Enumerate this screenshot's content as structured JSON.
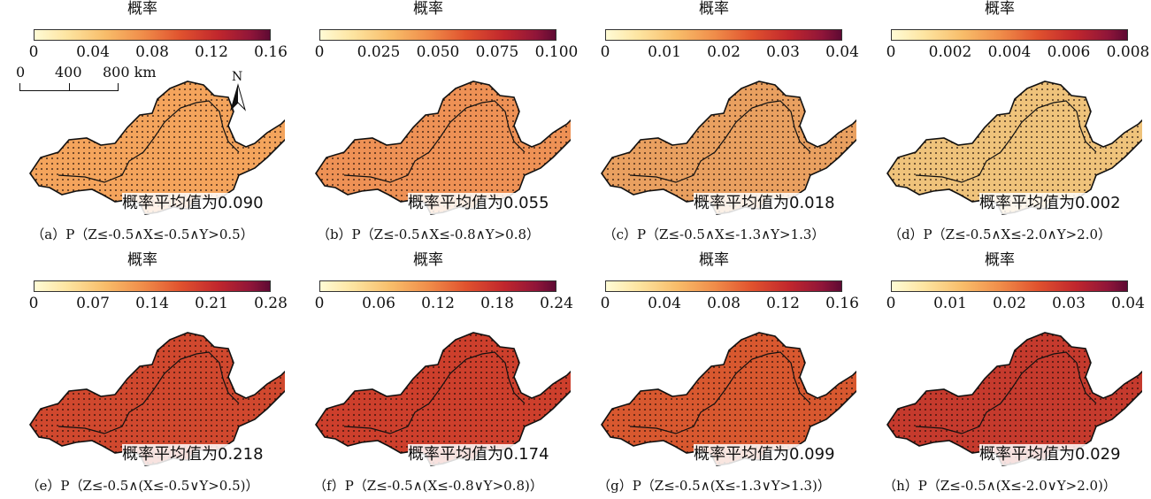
{
  "colorbar_title": "概率",
  "scale_bar": {
    "ticks": [
      "0",
      "400",
      "800 km"
    ]
  },
  "north_arrow_label": "N",
  "panels": [
    {
      "id": "a",
      "ticks": [
        "0",
        "0.04",
        "0.08",
        "0.12",
        "0.16"
      ],
      "mean_text": "概率平均值为0.090",
      "caption": "（a）P（Z≤-0.5∧X≤-0.5∧Y>0.5）"
    },
    {
      "id": "b",
      "ticks": [
        "0",
        "0.025",
        "0.050",
        "0.075",
        "0.100"
      ],
      "mean_text": "概率平均值为0.055",
      "caption": "（b）P（Z≤-0.5∧X≤-0.8∧Y>0.8）"
    },
    {
      "id": "c",
      "ticks": [
        "0",
        "0.01",
        "0.02",
        "0.03",
        "0.04"
      ],
      "mean_text": "概率平均值为0.018",
      "caption": "（c）P（Z≤-0.5∧X≤-1.3∧Y>1.3）"
    },
    {
      "id": "d",
      "ticks": [
        "0",
        "0.002",
        "0.004",
        "0.006",
        "0.008"
      ],
      "mean_text": "概率平均值为0.002",
      "caption": "（d）P（Z≤-0.5∧X≤-2.0∧Y>2.0）"
    },
    {
      "id": "e",
      "ticks": [
        "0",
        "0.07",
        "0.14",
        "0.21",
        "0.28"
      ],
      "mean_text": "概率平均值为0.218",
      "caption": "（e）P（Z≤-0.5∧(X≤-0.5∨Y>0.5)）"
    },
    {
      "id": "f",
      "ticks": [
        "0",
        "0.06",
        "0.12",
        "0.18",
        "0.24"
      ],
      "mean_text": "概率平均值为0.174",
      "caption": "（f）P（Z≤-0.5∧(X≤-0.8∨Y>0.8)）"
    },
    {
      "id": "g",
      "ticks": [
        "0",
        "0.04",
        "0.08",
        "0.12",
        "0.16"
      ],
      "mean_text": "概率平均值为0.099",
      "caption": "（g）P（Z≤-0.5∧(X≤-1.3∨Y>1.3)）"
    },
    {
      "id": "h",
      "ticks": [
        "0",
        "0.01",
        "0.02",
        "0.03",
        "0.04"
      ],
      "mean_text": "概率平均值为0.029",
      "caption": "（h）P（Z≤-0.5∧(X≤-2.0∨Y>2.0)）"
    }
  ],
  "map_fill_colors": [
    "#f4a45c",
    "#ee9155",
    "#e9a060",
    "#efc37b",
    "#d0482e",
    "#cd3f2c",
    "#d8582f",
    "#c53a2d"
  ]
}
